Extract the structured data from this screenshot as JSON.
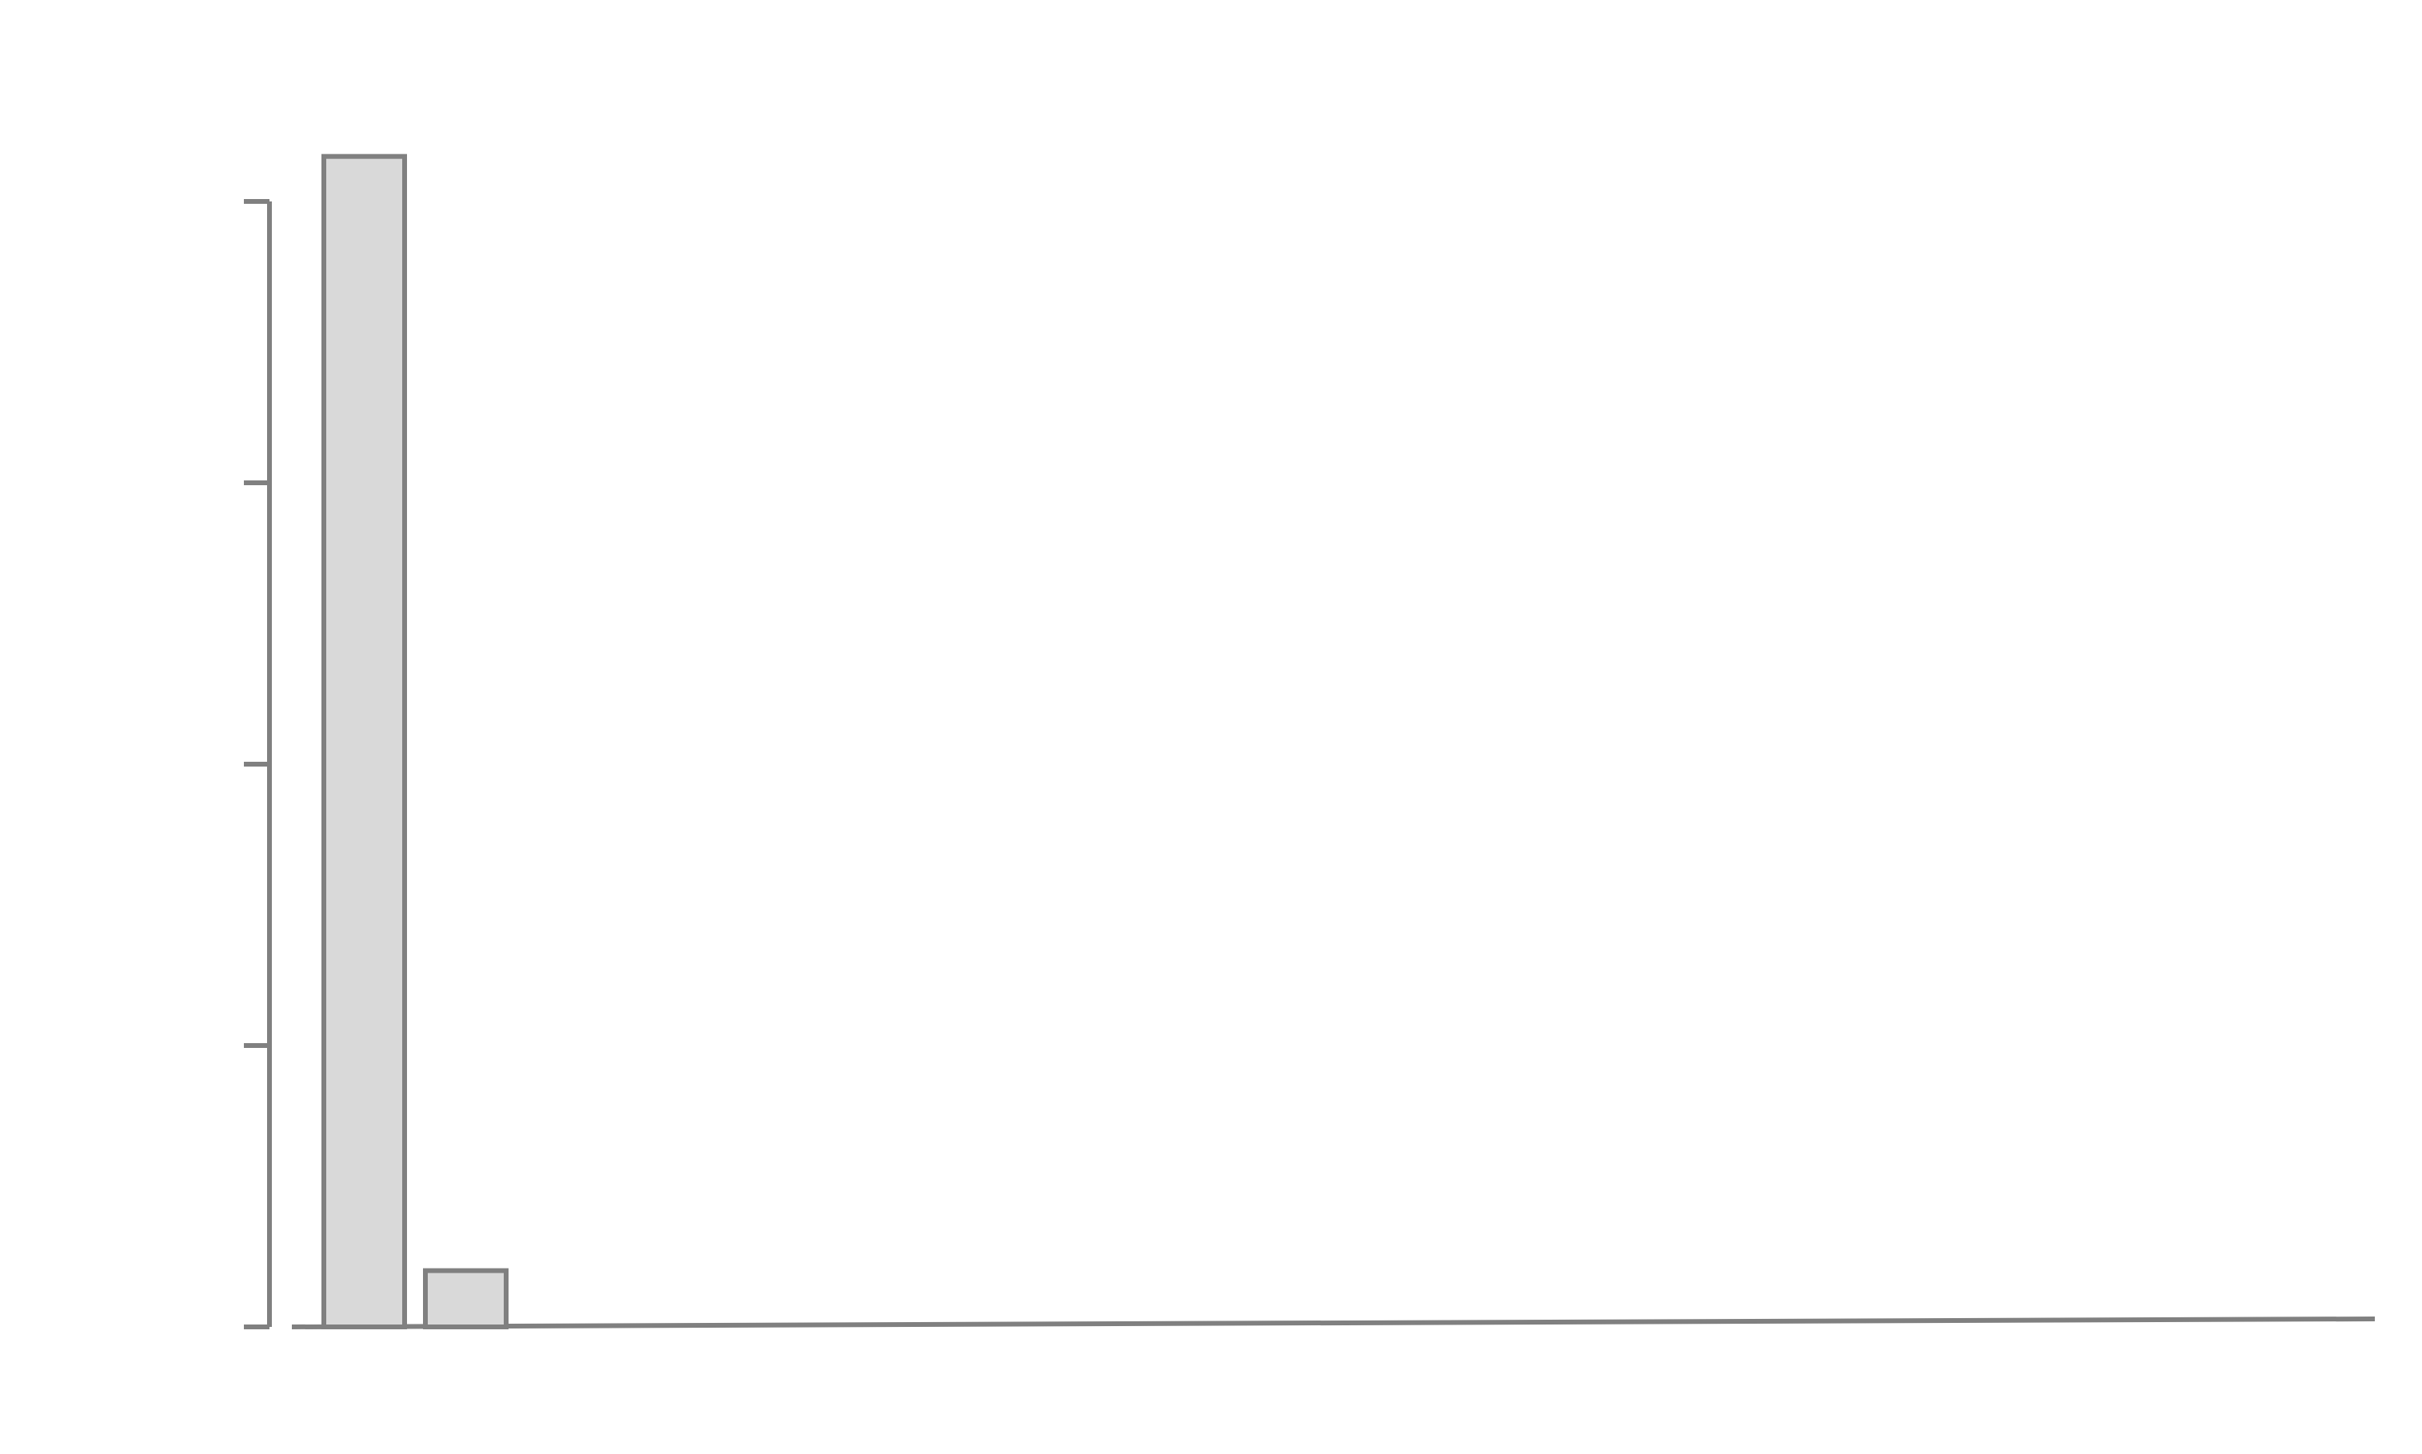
{
  "chart_data": {
    "type": "bar",
    "categories": [
      "",
      ""
    ],
    "values": [
      1.04,
      0.05
    ],
    "ylim": [
      0,
      1
    ],
    "yticks": [
      0,
      0.25,
      0.5,
      0.75,
      1
    ],
    "grid": false,
    "legend": "none",
    "colors": {
      "bar_fill": "#d9d9d9",
      "bar_stroke": "#808080",
      "axis": "#808080"
    }
  }
}
